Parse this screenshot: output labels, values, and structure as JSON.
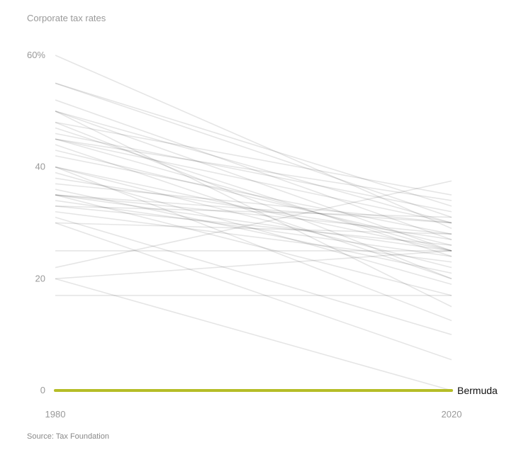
{
  "chart_data": {
    "type": "line",
    "title": "Corporate tax rates",
    "source": "Source: Tax Foundation",
    "x": [
      "1980",
      "2020"
    ],
    "ylim": [
      0,
      60
    ],
    "y_ticks": [
      "60%",
      "40",
      "20",
      "0"
    ],
    "y_tick_values": [
      60,
      40,
      20,
      0
    ],
    "grid": false,
    "highlight_color": "#b5bd27",
    "line_color": "#000000",
    "highlight": {
      "name": "Bermuda",
      "values": [
        0,
        0
      ]
    },
    "series": [
      {
        "values": [
          60,
          29
        ]
      },
      {
        "values": [
          55,
          33
        ]
      },
      {
        "values": [
          55,
          31
        ]
      },
      {
        "values": [
          52,
          27
        ]
      },
      {
        "values": [
          50,
          30
        ]
      },
      {
        "values": [
          50,
          25
        ]
      },
      {
        "values": [
          50,
          15
        ]
      },
      {
        "values": [
          48,
          35
        ]
      },
      {
        "values": [
          48,
          20
        ]
      },
      {
        "values": [
          47,
          24
        ]
      },
      {
        "values": [
          46,
          32
        ]
      },
      {
        "values": [
          45,
          30
        ]
      },
      {
        "values": [
          45,
          25
        ]
      },
      {
        "values": [
          45,
          34
        ]
      },
      {
        "values": [
          44,
          20
        ]
      },
      {
        "values": [
          43,
          26
        ]
      },
      {
        "values": [
          42,
          28
        ]
      },
      {
        "values": [
          40,
          25
        ]
      },
      {
        "values": [
          40,
          12.5
        ]
      },
      {
        "values": [
          40,
          22
        ]
      },
      {
        "values": [
          39,
          19
        ]
      },
      {
        "values": [
          38,
          27
        ]
      },
      {
        "values": [
          37,
          30
        ]
      },
      {
        "values": [
          36,
          21
        ]
      },
      {
        "values": [
          35,
          25
        ]
      },
      {
        "values": [
          35,
          30
        ]
      },
      {
        "values": [
          35,
          17
        ]
      },
      {
        "values": [
          35,
          28
        ]
      },
      {
        "values": [
          34,
          24
        ]
      },
      {
        "values": [
          33,
          31
        ]
      },
      {
        "values": [
          33,
          26
        ]
      },
      {
        "values": [
          32,
          23
        ]
      },
      {
        "values": [
          31,
          10
        ]
      },
      {
        "values": [
          30,
          28
        ]
      },
      {
        "values": [
          30,
          5.5
        ]
      },
      {
        "values": [
          25,
          25
        ]
      },
      {
        "values": [
          22,
          37.5
        ]
      },
      {
        "values": [
          20,
          25
        ]
      },
      {
        "values": [
          20,
          0
        ]
      },
      {
        "values": [
          17,
          17
        ]
      }
    ]
  }
}
